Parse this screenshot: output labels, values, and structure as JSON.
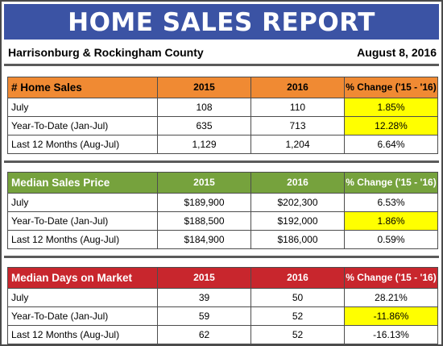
{
  "title": "HOME SALES REPORT",
  "location": "Harrisonburg & Rockingham County",
  "date": "August 8, 2016",
  "colors": {
    "banner": "#3b53a4",
    "home_sales_header": "#f08a33",
    "median_price_header": "#76a23d",
    "median_days_header": "#c8262d",
    "highlight": "#ffff00"
  },
  "tables": [
    {
      "heading": "# Home Sales",
      "col_2015": "2015",
      "col_2016": "2016",
      "col_change": "% Change ('15 - '16)",
      "rows": [
        {
          "label": "July",
          "v2015": "108",
          "v2016": "110",
          "change": "1.85%",
          "highlighted": true
        },
        {
          "label": "Year-To-Date (Jan-Jul)",
          "v2015": "635",
          "v2016": "713",
          "change": "12.28%",
          "highlighted": true
        },
        {
          "label": "Last 12 Months (Aug-Jul)",
          "v2015": "1,129",
          "v2016": "1,204",
          "change": "6.64%",
          "highlighted": false
        }
      ]
    },
    {
      "heading": "Median Sales Price",
      "col_2015": "2015",
      "col_2016": "2016",
      "col_change": "% Change ('15 - '16)",
      "rows": [
        {
          "label": "July",
          "v2015": "$189,900",
          "v2016": "$202,300",
          "change": "6.53%",
          "highlighted": false
        },
        {
          "label": "Year-To-Date (Jan-Jul)",
          "v2015": "$188,500",
          "v2016": "$192,000",
          "change": "1.86%",
          "highlighted": true
        },
        {
          "label": "Last 12 Months (Aug-Jul)",
          "v2015": "$184,900",
          "v2016": "$186,000",
          "change": "0.59%",
          "highlighted": false
        }
      ]
    },
    {
      "heading": "Median Days on Market",
      "col_2015": "2015",
      "col_2016": "2016",
      "col_change": "% Change ('15 - '16)",
      "rows": [
        {
          "label": "July",
          "v2015": "39",
          "v2016": "50",
          "change": "28.21%",
          "highlighted": false
        },
        {
          "label": "Year-To-Date (Jan-Jul)",
          "v2015": "59",
          "v2016": "52",
          "change": "-11.86%",
          "highlighted": true
        },
        {
          "label": "Last 12 Months (Aug-Jul)",
          "v2015": "62",
          "v2016": "52",
          "change": "-16.13%",
          "highlighted": false
        }
      ]
    }
  ]
}
